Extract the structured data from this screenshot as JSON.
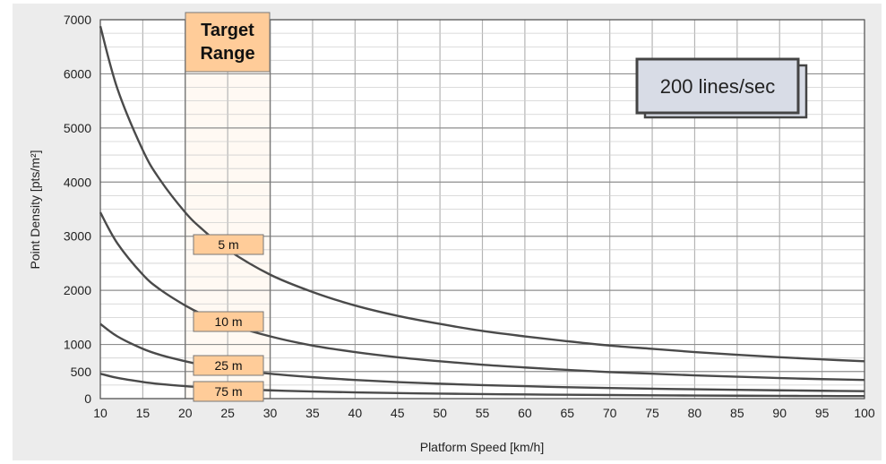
{
  "chart_data": {
    "type": "line",
    "title": "",
    "xlabel": "Platform Speed [km/h]",
    "ylabel": "Point Density [pts/m²]",
    "xlim": [
      10,
      100
    ],
    "ylim": [
      0,
      7000
    ],
    "grid": true,
    "x_ticks": [
      10,
      15,
      20,
      25,
      30,
      35,
      40,
      45,
      50,
      55,
      60,
      65,
      70,
      75,
      80,
      85,
      90,
      95,
      100
    ],
    "y_ticks": [
      0,
      500,
      1000,
      2000,
      3000,
      4000,
      5000,
      6000,
      7000
    ],
    "series": [
      {
        "name": "5 m",
        "x": [
          10,
          12,
          15,
          17,
          20,
          22,
          25,
          30,
          35,
          40,
          45,
          50,
          55,
          60,
          65,
          70,
          75,
          80,
          85,
          90,
          95,
          100
        ],
        "values": [
          6880,
          5730,
          4590,
          4050,
          3440,
          3130,
          2750,
          2290,
          1970,
          1720,
          1530,
          1380,
          1250,
          1150,
          1060,
          980,
          920,
          860,
          810,
          765,
          725,
          690
        ]
      },
      {
        "name": "10 m",
        "x": [
          10,
          12,
          15,
          17,
          20,
          22,
          25,
          30,
          35,
          40,
          45,
          50,
          55,
          60,
          65,
          70,
          75,
          80,
          85,
          90,
          95,
          100
        ],
        "values": [
          3440,
          2870,
          2290,
          2020,
          1720,
          1560,
          1380,
          1150,
          980,
          860,
          765,
          690,
          625,
          575,
          530,
          490,
          460,
          430,
          405,
          380,
          360,
          345
        ]
      },
      {
        "name": "25 m",
        "x": [
          10,
          12,
          15,
          17,
          20,
          22,
          25,
          30,
          35,
          40,
          45,
          50,
          55,
          60,
          65,
          70,
          75,
          80,
          85,
          90,
          95,
          100
        ],
        "values": [
          1380,
          1150,
          920,
          810,
          690,
          625,
          550,
          460,
          395,
          345,
          305,
          275,
          250,
          230,
          210,
          195,
          183,
          172,
          162,
          153,
          145,
          138
        ]
      },
      {
        "name": "75 m",
        "x": [
          10,
          12,
          15,
          17,
          20,
          22,
          25,
          30,
          35,
          40,
          45,
          50,
          55,
          60,
          65,
          70,
          75,
          80,
          85,
          90,
          95,
          100
        ],
        "values": [
          460,
          383,
          307,
          270,
          230,
          209,
          184,
          153,
          131,
          115,
          102,
          92,
          84,
          77,
          71,
          66,
          61,
          57,
          54,
          51,
          48,
          46
        ]
      }
    ],
    "annotations": {
      "target_range": {
        "line1": "Target",
        "line2": "Range",
        "x_range": [
          20,
          30
        ],
        "fill": "#FFCC99"
      },
      "rate_box": "200 lines/sec"
    }
  }
}
